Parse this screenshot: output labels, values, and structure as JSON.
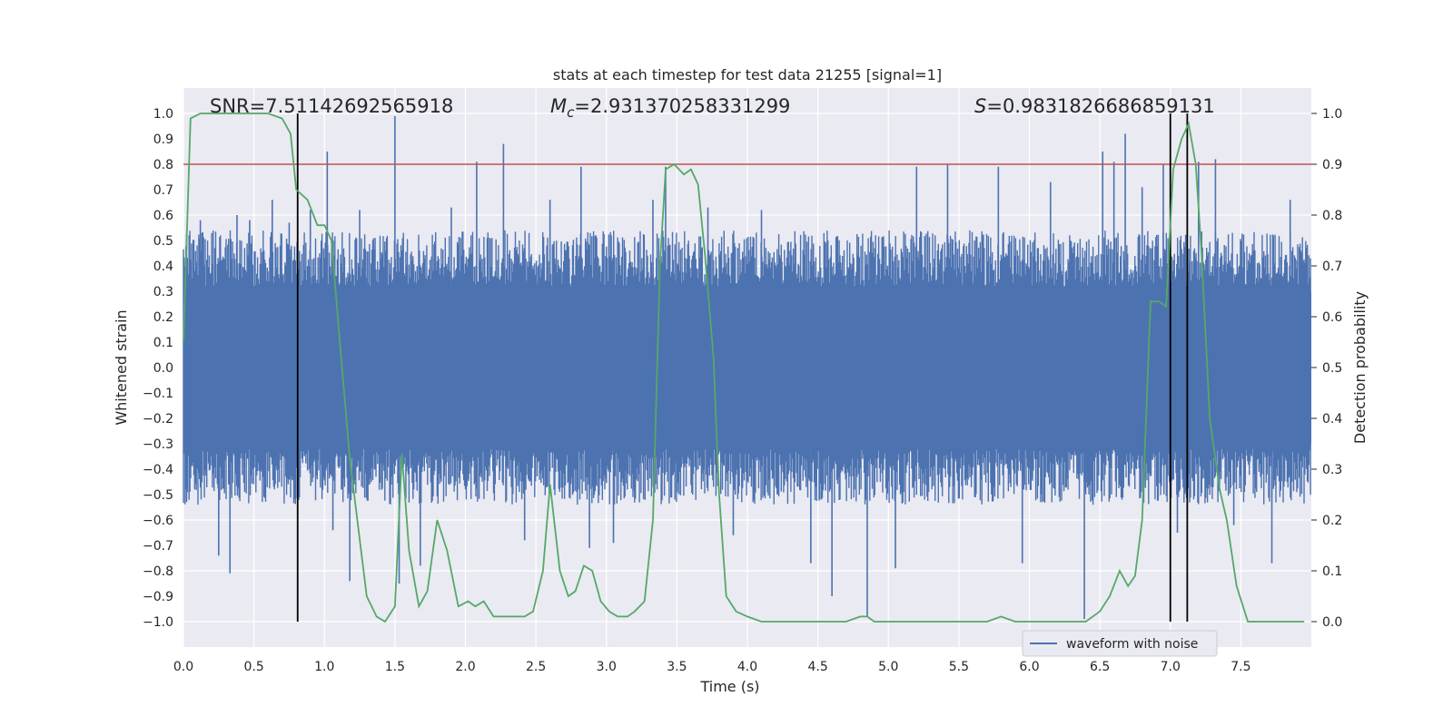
{
  "chart_data": {
    "type": "line",
    "title": "stats at each timestep for test data 21255 [signal=1]",
    "xlabel": "Time (s)",
    "ylabel": "Whitened strain",
    "ylabel_right": "Detection probability",
    "xlim": [
      0,
      8
    ],
    "ylim": [
      -1.1,
      1.1
    ],
    "ylim_right": [
      -0.05,
      1.05
    ],
    "x_ticks": [
      "0.0",
      "0.5",
      "1.0",
      "1.5",
      "2.0",
      "2.5",
      "3.0",
      "3.5",
      "4.0",
      "4.5",
      "5.0",
      "5.5",
      "6.0",
      "6.5",
      "7.0",
      "7.5"
    ],
    "y_ticks": [
      "−1.0",
      "−0.9",
      "−0.8",
      "−0.7",
      "−0.6",
      "−0.5",
      "−0.4",
      "−0.3",
      "−0.2",
      "−0.1",
      "0.0",
      "0.1",
      "0.2",
      "0.3",
      "0.4",
      "0.5",
      "0.6",
      "0.7",
      "0.8",
      "0.9",
      "1.0"
    ],
    "y_ticks_right": [
      "0.0",
      "0.1",
      "0.2",
      "0.3",
      "0.4",
      "0.5",
      "0.6",
      "0.7",
      "0.8",
      "0.9",
      "1.0"
    ],
    "grid": true,
    "legend": {
      "entries": [
        "waveform with noise"
      ],
      "placement": "lower right"
    },
    "annotations": {
      "snr": "SNR=7.51142692565918",
      "mc_symbol": "M",
      "mc_sub": "c",
      "mc_value": "=2.931370258331299",
      "s_symbol": "S",
      "s_value": "=0.9831826686859131"
    },
    "threshold_line": {
      "y": 0.8,
      "color": "#c44e52"
    },
    "vertical_lines": [
      0.81,
      7.0,
      7.12
    ],
    "waveform": {
      "name": "waveform with noise",
      "color": "#4c72b0",
      "amplitude_band": 0.4,
      "spikes": [
        [
          0.12,
          0.58
        ],
        [
          0.25,
          -0.74
        ],
        [
          0.33,
          -0.81
        ],
        [
          0.38,
          0.6
        ],
        [
          0.47,
          0.58
        ],
        [
          0.63,
          0.66
        ],
        [
          0.75,
          0.57
        ],
        [
          0.9,
          0.62
        ],
        [
          1.02,
          0.85
        ],
        [
          1.06,
          -0.64
        ],
        [
          1.18,
          -0.84
        ],
        [
          1.25,
          0.62
        ],
        [
          1.5,
          0.99
        ],
        [
          1.53,
          -0.85
        ],
        [
          1.68,
          -0.78
        ],
        [
          1.9,
          0.63
        ],
        [
          2.08,
          0.81
        ],
        [
          2.27,
          0.88
        ],
        [
          2.42,
          -0.68
        ],
        [
          2.6,
          0.66
        ],
        [
          2.82,
          0.79
        ],
        [
          2.88,
          -0.71
        ],
        [
          3.05,
          -0.69
        ],
        [
          3.33,
          0.66
        ],
        [
          3.42,
          0.79
        ],
        [
          3.72,
          0.63
        ],
        [
          3.9,
          -0.66
        ],
        [
          4.1,
          0.62
        ],
        [
          4.45,
          -0.77
        ],
        [
          4.6,
          -0.9
        ],
        [
          4.85,
          -0.98
        ],
        [
          5.05,
          -0.79
        ],
        [
          5.2,
          0.79
        ],
        [
          5.42,
          0.8
        ],
        [
          5.78,
          0.79
        ],
        [
          5.95,
          -0.77
        ],
        [
          6.15,
          0.73
        ],
        [
          6.39,
          -0.99
        ],
        [
          6.52,
          0.85
        ],
        [
          6.6,
          0.81
        ],
        [
          6.68,
          0.92
        ],
        [
          6.8,
          0.71
        ],
        [
          6.95,
          0.8
        ],
        [
          7.05,
          -0.65
        ],
        [
          7.2,
          0.81
        ],
        [
          7.32,
          0.82
        ],
        [
          7.45,
          -0.62
        ],
        [
          7.72,
          -0.77
        ],
        [
          7.85,
          0.66
        ]
      ]
    },
    "probability": {
      "name": "Detection probability",
      "color": "#55a868",
      "x": [
        0.0,
        0.05,
        0.12,
        0.2,
        0.3,
        0.4,
        0.5,
        0.6,
        0.7,
        0.76,
        0.8,
        0.88,
        0.95,
        1.0,
        1.05,
        1.1,
        1.18,
        1.3,
        1.37,
        1.43,
        1.5,
        1.55,
        1.6,
        1.67,
        1.73,
        1.8,
        1.87,
        1.95,
        2.02,
        2.07,
        2.13,
        2.2,
        2.27,
        2.33,
        2.42,
        2.48,
        2.55,
        2.6,
        2.67,
        2.73,
        2.78,
        2.84,
        2.9,
        2.96,
        3.02,
        3.08,
        3.15,
        3.2,
        3.27,
        3.33,
        3.38,
        3.42,
        3.48,
        3.55,
        3.6,
        3.65,
        3.7,
        3.76,
        3.8,
        3.85,
        3.92,
        4.0,
        4.1,
        4.2,
        4.3,
        4.4,
        4.5,
        4.6,
        4.7,
        4.8,
        4.85,
        4.9,
        5.0,
        5.2,
        5.4,
        5.6,
        5.7,
        5.8,
        5.9,
        6.0,
        6.1,
        6.2,
        6.3,
        6.4,
        6.5,
        6.57,
        6.64,
        6.7,
        6.75,
        6.8,
        6.86,
        6.92,
        6.97,
        7.02,
        7.08,
        7.13,
        7.18,
        7.22,
        7.28,
        7.35,
        7.4,
        7.47,
        7.55,
        7.65,
        7.8,
        7.95
      ],
      "y": [
        0.55,
        0.99,
        1.0,
        1.0,
        1.0,
        1.0,
        1.0,
        1.0,
        0.99,
        0.96,
        0.85,
        0.83,
        0.78,
        0.78,
        0.75,
        0.58,
        0.32,
        0.05,
        0.01,
        0.0,
        0.03,
        0.33,
        0.14,
        0.03,
        0.06,
        0.2,
        0.14,
        0.03,
        0.04,
        0.03,
        0.04,
        0.01,
        0.01,
        0.01,
        0.01,
        0.02,
        0.1,
        0.27,
        0.1,
        0.05,
        0.06,
        0.11,
        0.1,
        0.04,
        0.02,
        0.01,
        0.01,
        0.02,
        0.04,
        0.2,
        0.7,
        0.89,
        0.9,
        0.88,
        0.89,
        0.86,
        0.72,
        0.52,
        0.25,
        0.05,
        0.02,
        0.01,
        0.0,
        0.0,
        0.0,
        0.0,
        0.0,
        0.0,
        0.0,
        0.01,
        0.01,
        0.0,
        0.0,
        0.0,
        0.0,
        0.0,
        0.0,
        0.01,
        0.0,
        0.0,
        0.0,
        0.0,
        0.0,
        0.0,
        0.02,
        0.05,
        0.1,
        0.07,
        0.09,
        0.2,
        0.63,
        0.63,
        0.62,
        0.89,
        0.95,
        0.98,
        0.9,
        0.73,
        0.4,
        0.26,
        0.2,
        0.07,
        0.0,
        0.0,
        0.0,
        0.0
      ]
    }
  }
}
